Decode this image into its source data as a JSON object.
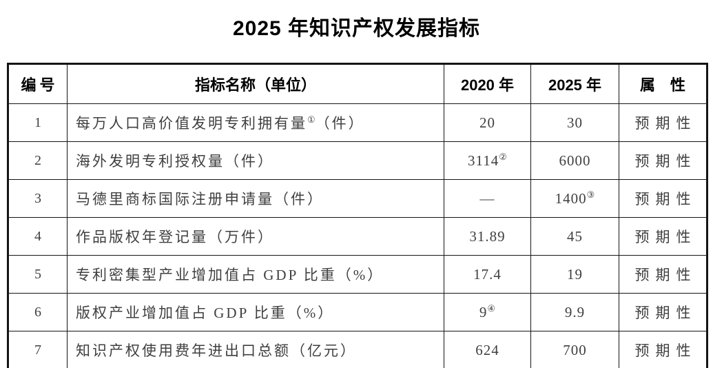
{
  "title": "2025 年知识产权发展指标",
  "table": {
    "columns": [
      "编号",
      "指标名称（单位）",
      "2020 年",
      "2025 年",
      "属　性"
    ],
    "rows": [
      {
        "num": "1",
        "name": "每万人口高价值发明专利拥有量",
        "name_sup": "①",
        "name_suffix": "（件）",
        "v2020": "20",
        "v2020_sup": "",
        "v2025": "30",
        "v2025_sup": "",
        "attr": "预期性"
      },
      {
        "num": "2",
        "name": "海外发明专利授权量（件）",
        "name_sup": "",
        "name_suffix": "",
        "v2020": "3114",
        "v2020_sup": "②",
        "v2025": "6000",
        "v2025_sup": "",
        "attr": "预期性"
      },
      {
        "num": "3",
        "name": "马德里商标国际注册申请量（件）",
        "name_sup": "",
        "name_suffix": "",
        "v2020": "—",
        "v2020_sup": "",
        "v2025": "1400",
        "v2025_sup": "③",
        "attr": "预期性"
      },
      {
        "num": "4",
        "name": "作品版权年登记量（万件）",
        "name_sup": "",
        "name_suffix": "",
        "v2020": "31.89",
        "v2020_sup": "",
        "v2025": "45",
        "v2025_sup": "",
        "attr": "预期性"
      },
      {
        "num": "5",
        "name": "专利密集型产业增加值占 GDP 比重（%）",
        "name_sup": "",
        "name_suffix": "",
        "v2020": "17.4",
        "v2020_sup": "",
        "v2025": "19",
        "v2025_sup": "",
        "attr": "预期性"
      },
      {
        "num": "6",
        "name": "版权产业增加值占 GDP 比重（%）",
        "name_sup": "",
        "name_suffix": "",
        "v2020": "9",
        "v2020_sup": "④",
        "v2025": "9.9",
        "v2025_sup": "",
        "attr": "预期性"
      },
      {
        "num": "7",
        "name": "知识产权使用费年进出口总额（亿元）",
        "name_sup": "",
        "name_suffix": "",
        "v2020": "624",
        "v2020_sup": "",
        "v2025": "700",
        "v2025_sup": "",
        "attr": "预期性"
      }
    ]
  }
}
